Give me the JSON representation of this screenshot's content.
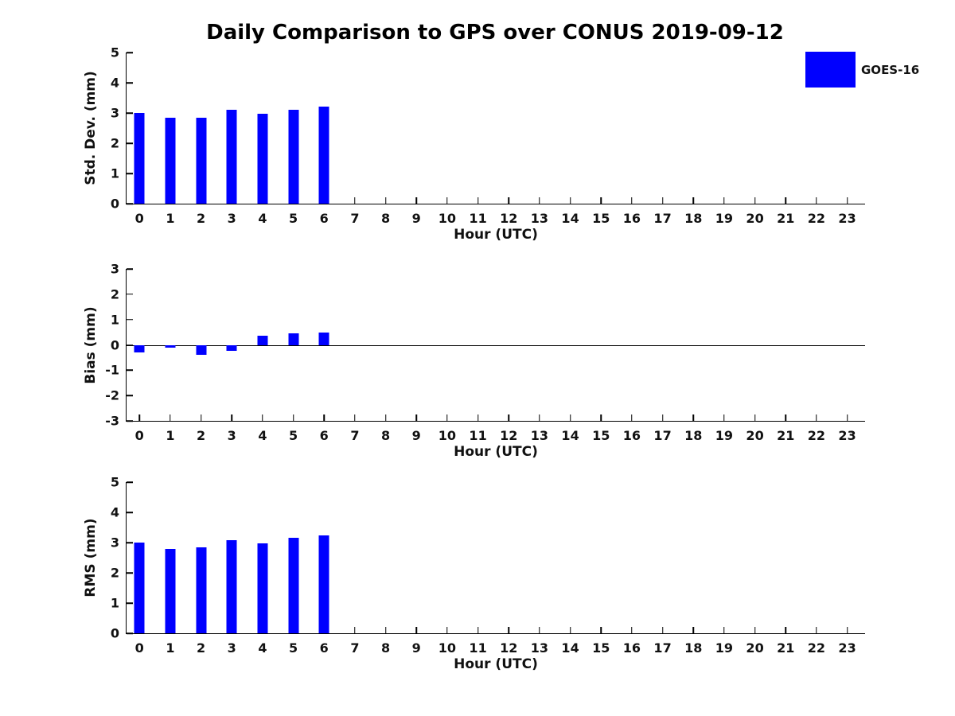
{
  "title": "Daily Comparison to GPS over CONUS 2019-09-12",
  "legend": {
    "label": "GOES-16",
    "color": "#0000ff",
    "position": "top-right"
  },
  "xlabel": "Hour (UTC)",
  "xtick_labels": [
    "0",
    "1",
    "2",
    "3",
    "4",
    "5",
    "6",
    "7",
    "8",
    "9",
    "10",
    "11",
    "12",
    "13",
    "14",
    "15",
    "16",
    "17",
    "18",
    "19",
    "20",
    "21",
    "22",
    "23"
  ],
  "chart_data": [
    {
      "type": "bar",
      "id": "std-dev",
      "series_name": "GOES-16",
      "ylabel": "Std. Dev. (mm)",
      "xlabel": "Hour (UTC)",
      "ylim": [
        0,
        5
      ],
      "yticks": [
        0,
        1,
        2,
        3,
        4,
        5
      ],
      "xlim": [
        -0.42,
        23.58
      ],
      "grid": false,
      "x": [
        0,
        1,
        2,
        3,
        4,
        5,
        6
      ],
      "values": [
        3.0,
        2.85,
        2.85,
        3.1,
        2.97,
        3.1,
        3.2
      ]
    },
    {
      "type": "bar",
      "id": "bias",
      "series_name": "GOES-16",
      "ylabel": "Bias (mm)",
      "xlabel": "Hour (UTC)",
      "ylim": [
        -3,
        3
      ],
      "yticks": [
        -3,
        -2,
        -1,
        0,
        1,
        2,
        3
      ],
      "xlim": [
        -0.42,
        23.58
      ],
      "grid": false,
      "zero_line": true,
      "x": [
        0,
        1,
        2,
        3,
        4,
        5,
        6
      ],
      "values": [
        -0.3,
        -0.1,
        -0.4,
        -0.25,
        0.35,
        0.45,
        0.5
      ]
    },
    {
      "type": "bar",
      "id": "rms",
      "series_name": "GOES-16",
      "ylabel": "RMS (mm)",
      "xlabel": "Hour (UTC)",
      "ylim": [
        0,
        5
      ],
      "yticks": [
        0,
        1,
        2,
        3,
        4,
        5
      ],
      "xlim": [
        -0.42,
        23.58
      ],
      "grid": false,
      "x": [
        0,
        1,
        2,
        3,
        4,
        5,
        6
      ],
      "values": [
        3.0,
        2.8,
        2.85,
        3.08,
        2.97,
        3.15,
        3.24
      ]
    }
  ]
}
